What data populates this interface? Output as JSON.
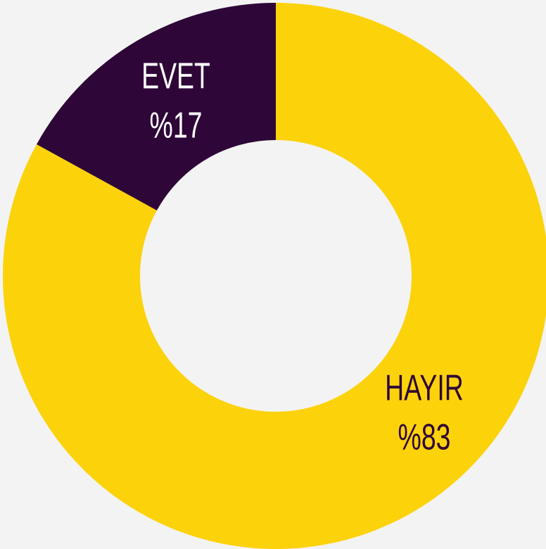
{
  "chart_data": {
    "type": "donut",
    "categories": [
      "EVET",
      "HAYIR"
    ],
    "values": [
      17,
      83
    ],
    "value_labels": [
      "%17",
      "%83"
    ],
    "colors": [
      "#2e0638",
      "#fcd20b"
    ],
    "label_colors": [
      "#ffffff",
      "#2e0638"
    ]
  }
}
